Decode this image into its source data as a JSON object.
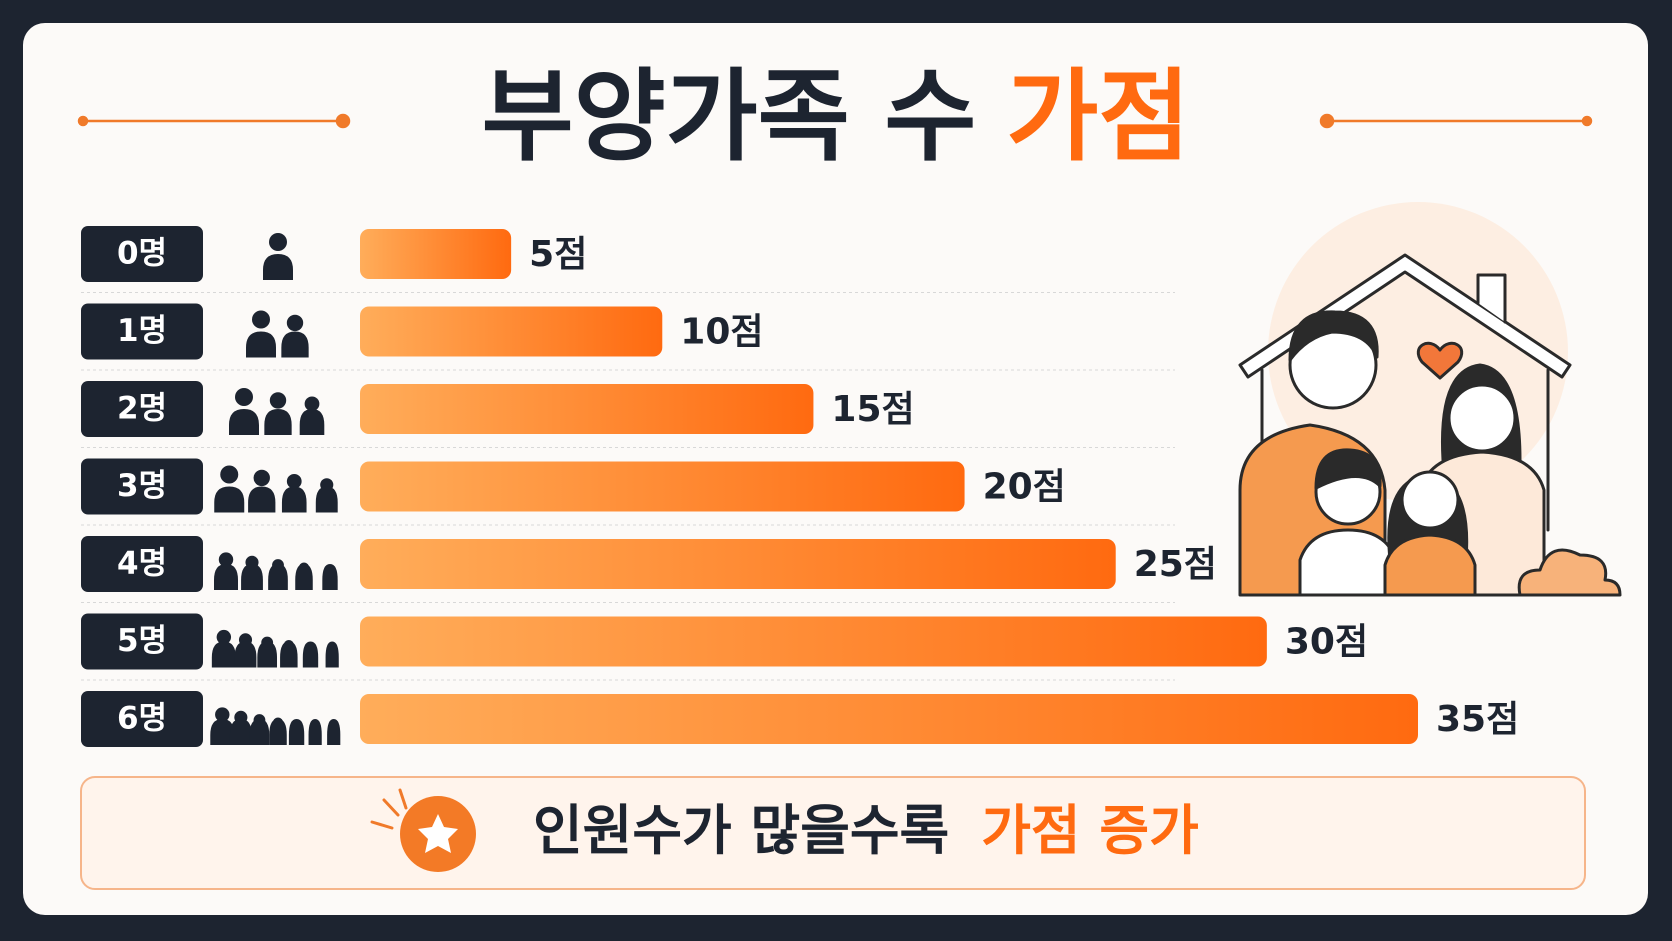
{
  "chart_data": {
    "type": "bar",
    "title": [
      "부양가족 수",
      "가점"
    ],
    "categories": [
      "0명",
      "1명",
      "2명",
      "3명",
      "4명",
      "5명",
      "6명"
    ],
    "values": [
      5,
      10,
      15,
      20,
      25,
      30,
      35
    ],
    "value_labels": [
      "5점",
      "10점",
      "15점",
      "20점",
      "25점",
      "30점",
      "35점"
    ],
    "colors": [
      "#ffad5a",
      "#ff6a10"
    ],
    "footer": [
      "인원수가 많을수록",
      "가점 증가"
    ]
  }
}
